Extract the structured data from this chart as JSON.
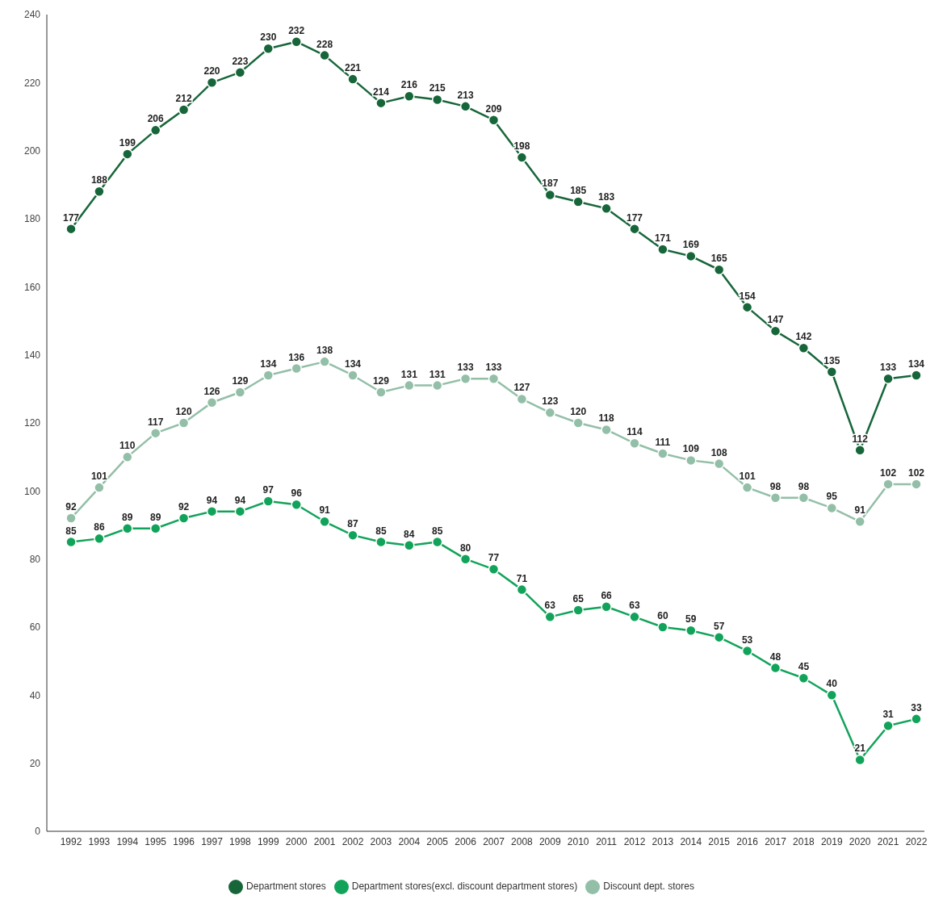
{
  "chart_data": {
    "type": "line",
    "categories": [
      "1992",
      "1993",
      "1994",
      "1995",
      "1996",
      "1997",
      "1998",
      "1999",
      "2000",
      "2001",
      "2002",
      "2003",
      "2004",
      "2005",
      "2006",
      "2007",
      "2008",
      "2009",
      "2010",
      "2011",
      "2012",
      "2013",
      "2014",
      "2015",
      "2016",
      "2017",
      "2018",
      "2019",
      "2020",
      "2021",
      "2022"
    ],
    "series": [
      {
        "name": "Department stores",
        "color": "#17663a",
        "values": [
          177,
          188,
          199,
          206,
          212,
          220,
          223,
          230,
          232,
          228,
          221,
          214,
          216,
          215,
          213,
          209,
          198,
          187,
          185,
          183,
          177,
          171,
          169,
          165,
          154,
          147,
          142,
          135,
          112,
          133,
          134
        ]
      },
      {
        "name": "Department stores(excl. discount department stores)",
        "color": "#12a35a",
        "values": [
          85,
          86,
          89,
          89,
          92,
          94,
          94,
          97,
          96,
          91,
          87,
          85,
          84,
          85,
          80,
          77,
          71,
          63,
          65,
          66,
          63,
          60,
          59,
          57,
          53,
          48,
          45,
          40,
          21,
          31,
          33
        ]
      },
      {
        "name": "Discount dept. stores",
        "color": "#93bfa8",
        "values": [
          92,
          101,
          110,
          117,
          120,
          126,
          129,
          134,
          136,
          138,
          134,
          129,
          131,
          131,
          133,
          133,
          127,
          123,
          120,
          118,
          114,
          111,
          109,
          108,
          101,
          98,
          98,
          95,
          91,
          102,
          102
        ]
      }
    ],
    "ylim": [
      0,
      240
    ],
    "yticks": [
      0,
      20,
      40,
      60,
      80,
      100,
      120,
      140,
      160,
      180,
      200,
      220,
      240
    ],
    "grid": false,
    "legend": "bottom",
    "marker": "circle",
    "line_style": "solid",
    "data_labels": true
  }
}
